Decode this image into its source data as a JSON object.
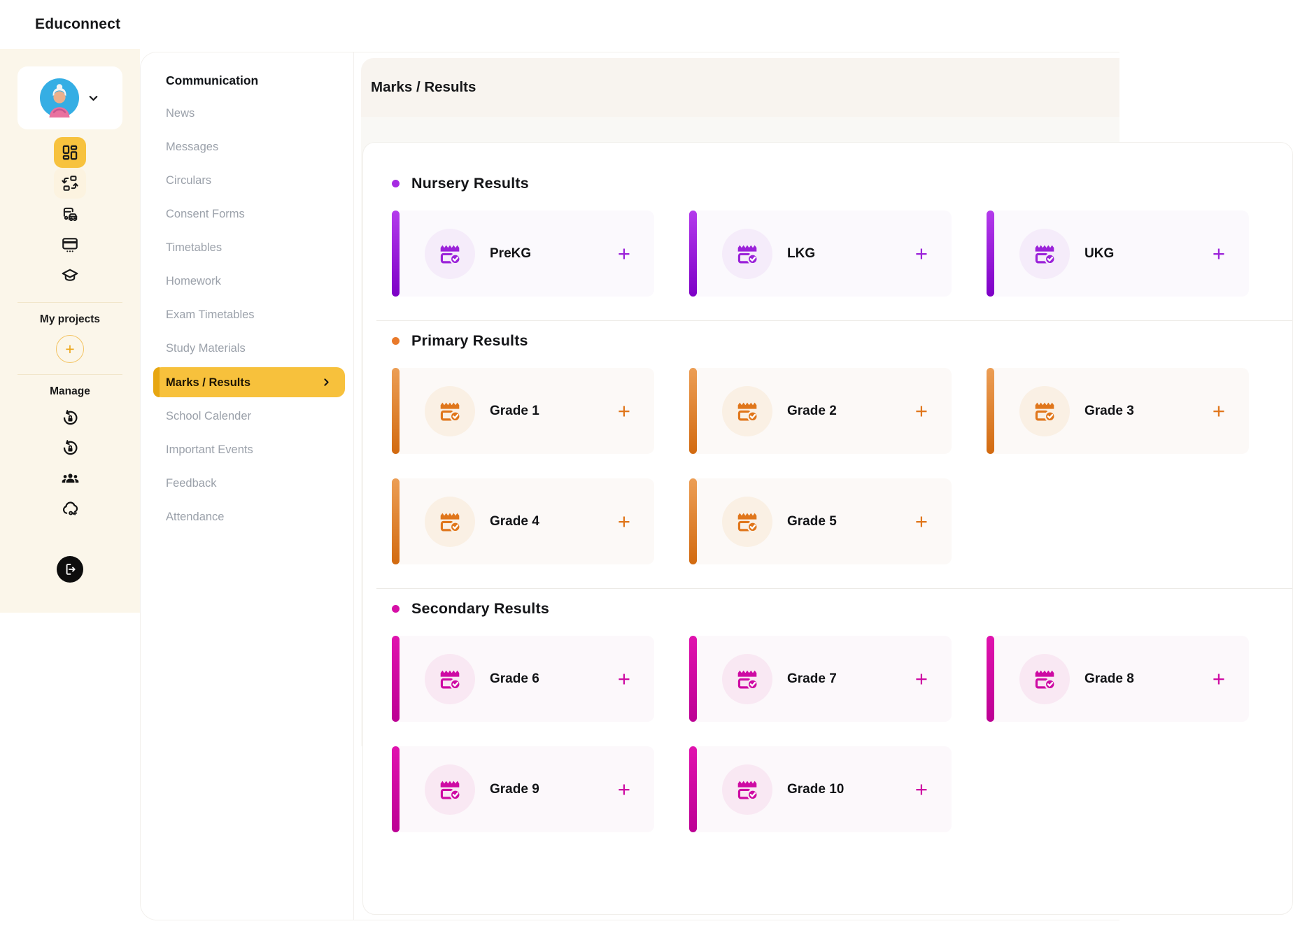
{
  "app": {
    "title": "Educonnect"
  },
  "rail": {
    "avatar": "teacher-avatar",
    "nav_items": [
      {
        "icon": "dashboard-grid",
        "active": true
      },
      {
        "icon": "workflow-swap",
        "active": false,
        "soft": true
      },
      {
        "icon": "transport",
        "active": false
      },
      {
        "icon": "id-card",
        "active": false
      },
      {
        "icon": "graduation-cap",
        "active": false
      }
    ],
    "my_projects_label": "My projects",
    "add_project_glyph": "+",
    "manage_label": "Manage",
    "manage_items": [
      {
        "icon": "rotate-lock"
      },
      {
        "icon": "rotate-lock"
      },
      {
        "icon": "people-group"
      },
      {
        "icon": "cloud-key"
      }
    ]
  },
  "menu": {
    "heading": "Communication",
    "items": [
      {
        "label": "News",
        "active": false
      },
      {
        "label": "Messages",
        "active": false
      },
      {
        "label": "Circulars",
        "active": false
      },
      {
        "label": "Consent Forms",
        "active": false
      },
      {
        "label": "Timetables",
        "active": false
      },
      {
        "label": "Homework",
        "active": false
      },
      {
        "label": "Exam Timetables",
        "active": false
      },
      {
        "label": "Study Materials",
        "active": false
      },
      {
        "label": "Marks / Results",
        "active": true
      },
      {
        "label": "School Calender",
        "active": false
      },
      {
        "label": "Important Events",
        "active": false
      },
      {
        "label": "Feedback",
        "active": false
      },
      {
        "label": "Attendance",
        "active": false
      }
    ]
  },
  "page": {
    "title": "Marks / Results"
  },
  "sections": [
    {
      "title": "Nursery Results",
      "tone": "purple",
      "cards": [
        "PreKG",
        "LKG",
        "UKG"
      ]
    },
    {
      "title": "Primary Results",
      "tone": "orange",
      "cards": [
        "Grade 1",
        "Grade 2",
        "Grade 3",
        "Grade 4",
        "Grade 5"
      ]
    },
    {
      "title": "Secondary Results",
      "tone": "magenta",
      "cards": [
        "Grade 6",
        "Grade 7",
        "Grade 8",
        "Grade 9",
        "Grade 10"
      ]
    }
  ],
  "ui": {
    "plus_glyph": "+"
  },
  "colors": {
    "sidebar_cream": "#FBF6EA",
    "active_amber": "#F7C13C",
    "active_amber_edge": "#E7A611",
    "header_band": "#F8F4EF",
    "purple_accent": "#9B22D9",
    "orange_accent": "#E0761B",
    "magenta_accent": "#CE0BA3"
  }
}
